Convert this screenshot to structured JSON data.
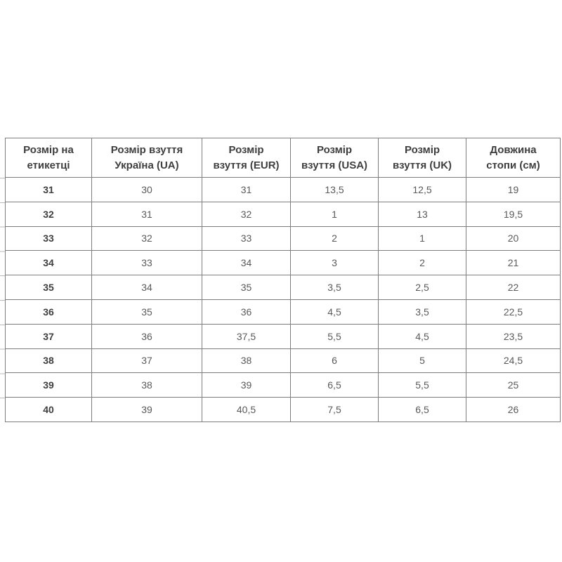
{
  "page": {
    "background": "#ffffff"
  },
  "colors": {
    "border": "#7e7e7e",
    "header_text": "#3e3e3e",
    "cell_text": "#5a5a5a",
    "background": "#ffffff"
  },
  "table": {
    "headers": [
      "Розмір на\nетикетці",
      "Розмір взуття\nУкраїна (UA)",
      "Розмір\nвзуття (EUR)",
      "Розмір\nвзуття (USA)",
      "Розмір\nвзуття (UK)",
      "Довжина\nстопи (см)"
    ]
  },
  "chart_data": {
    "type": "table",
    "title": "",
    "columns": [
      "Розмір на етикетці",
      "Розмір взуття Україна (UA)",
      "Розмір взуття (EUR)",
      "Розмір взуття (USA)",
      "Розмір взуття (UK)",
      "Довжина стопи (см)"
    ],
    "rows": [
      [
        "31",
        "30",
        "31",
        "13,5",
        "12,5",
        "19"
      ],
      [
        "32",
        "31",
        "32",
        "1",
        "13",
        "19,5"
      ],
      [
        "33",
        "32",
        "33",
        "2",
        "1",
        "20"
      ],
      [
        "34",
        "33",
        "34",
        "3",
        "2",
        "21"
      ],
      [
        "35",
        "34",
        "35",
        "3,5",
        "2,5",
        "22"
      ],
      [
        "36",
        "35",
        "36",
        "4,5",
        "3,5",
        "22,5"
      ],
      [
        "37",
        "36",
        "37,5",
        "5,5",
        "4,5",
        "23,5"
      ],
      [
        "38",
        "37",
        "38",
        "6",
        "5",
        "24,5"
      ],
      [
        "39",
        "38",
        "39",
        "6,5",
        "5,5",
        "25"
      ],
      [
        "40",
        "39",
        "40,5",
        "7,5",
        "6,5",
        "26"
      ]
    ]
  }
}
